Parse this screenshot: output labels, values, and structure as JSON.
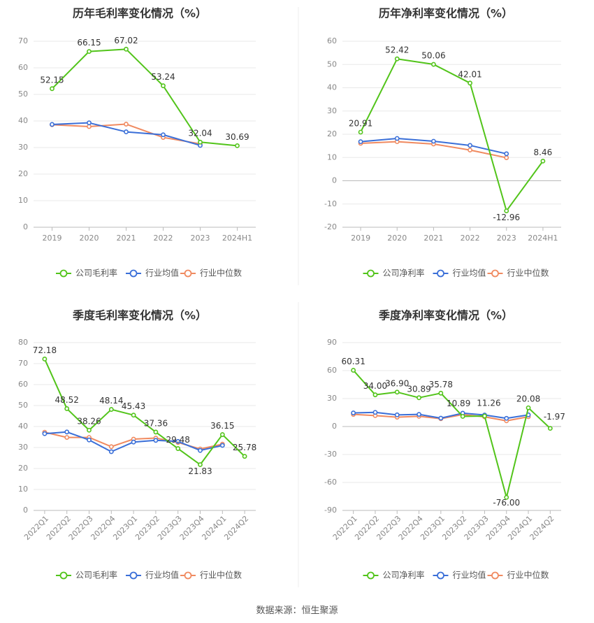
{
  "source_label": "数据来源：恒生聚源",
  "colors": {
    "company": "#52c41a",
    "industry_avg": "#3a6fd8",
    "industry_median": "#f08a60",
    "grid": "#e8e8e8",
    "axis": "#bbbbbb",
    "tick": "#888888",
    "title": "#333333",
    "label": "#333333"
  },
  "chart_data": [
    {
      "type": "line",
      "title": "历年毛利率变化情况（%）",
      "categories": [
        "2019",
        "2020",
        "2021",
        "2022",
        "2023",
        "2024H1"
      ],
      "ylim": [
        0,
        70
      ],
      "yticks": [
        0,
        10,
        20,
        30,
        40,
        50,
        60,
        70
      ],
      "grid": true,
      "legend": "bottom",
      "rotate_xticks": false,
      "series": [
        {
          "name": "公司毛利率",
          "color_key": "company",
          "labels": true,
          "values": [
            52.15,
            66.15,
            67.02,
            53.24,
            32.04,
            30.69
          ],
          "label_text": [
            "52.15",
            "66.15",
            "67.02",
            "53.24",
            "32.04",
            "30.69"
          ]
        },
        {
          "name": "行业均值",
          "color_key": "industry_avg",
          "labels": false,
          "values": [
            38.7,
            39.3,
            35.9,
            34.8,
            30.8,
            null
          ]
        },
        {
          "name": "行业中位数",
          "color_key": "industry_median",
          "labels": false,
          "values": [
            38.6,
            37.9,
            38.8,
            33.8,
            31.4,
            null
          ]
        }
      ]
    },
    {
      "type": "line",
      "title": "历年净利率变化情况（%）",
      "categories": [
        "2019",
        "2020",
        "2021",
        "2022",
        "2023",
        "2024H1"
      ],
      "ylim": [
        -20,
        60
      ],
      "yticks": [
        -20,
        -10,
        0,
        10,
        20,
        30,
        40,
        50,
        60
      ],
      "grid": true,
      "legend": "bottom",
      "rotate_xticks": false,
      "series": [
        {
          "name": "公司净利率",
          "color_key": "company",
          "labels": true,
          "values": [
            20.91,
            52.42,
            50.06,
            42.01,
            -12.96,
            8.46
          ],
          "label_text": [
            "20.91",
            "52.42",
            "50.06",
            "42.01",
            "-12.96",
            "8.46"
          ]
        },
        {
          "name": "行业均值",
          "color_key": "industry_avg",
          "labels": false,
          "values": [
            16.8,
            18.2,
            17.0,
            15.2,
            11.6,
            null
          ]
        },
        {
          "name": "行业中位数",
          "color_key": "industry_median",
          "labels": false,
          "values": [
            16.1,
            16.8,
            15.8,
            13.2,
            9.9,
            null
          ]
        }
      ]
    },
    {
      "type": "line",
      "title": "季度毛利率变化情况（%）",
      "categories": [
        "2022Q1",
        "2022Q2",
        "2022Q3",
        "2022Q4",
        "2023Q1",
        "2023Q2",
        "2023Q3",
        "2023Q4",
        "2024Q1",
        "2024Q2"
      ],
      "ylim": [
        0,
        80
      ],
      "yticks": [
        0,
        10,
        20,
        30,
        40,
        50,
        60,
        70,
        80
      ],
      "grid": true,
      "legend": "bottom",
      "rotate_xticks": true,
      "series": [
        {
          "name": "公司毛利率",
          "color_key": "company",
          "labels": true,
          "values": [
            72.18,
            48.52,
            38.26,
            48.14,
            45.43,
            37.36,
            29.48,
            21.83,
            36.15,
            25.78
          ],
          "label_text": [
            "72.18",
            "48.52",
            "38.26",
            "48.14",
            "45.43",
            "37.36",
            "29.48",
            "21.83",
            "36.15",
            "25.78"
          ]
        },
        {
          "name": "行业均值",
          "color_key": "industry_avg",
          "labels": false,
          "values": [
            36.6,
            37.4,
            33.6,
            28.0,
            32.6,
            33.4,
            32.9,
            28.6,
            31.0,
            null
          ]
        },
        {
          "name": "行业中位数",
          "color_key": "industry_median",
          "labels": false,
          "values": [
            37.3,
            34.8,
            34.8,
            30.4,
            34.0,
            34.5,
            32.4,
            29.3,
            31.6,
            null
          ]
        }
      ]
    },
    {
      "type": "line",
      "title": "季度净利率变化情况（%）",
      "categories": [
        "2022Q1",
        "2022Q2",
        "2022Q3",
        "2022Q4",
        "2023Q1",
        "2023Q2",
        "2023Q3",
        "2023Q4",
        "2024Q1",
        "2024Q2"
      ],
      "ylim": [
        -90,
        90
      ],
      "yticks": [
        -90,
        -60,
        -30,
        0,
        30,
        60,
        90
      ],
      "grid": true,
      "legend": "bottom",
      "rotate_xticks": true,
      "series": [
        {
          "name": "公司净利率",
          "color_key": "company",
          "labels": true,
          "values": [
            60.31,
            34.0,
            36.9,
            30.89,
            35.78,
            10.89,
            11.26,
            -76.0,
            20.08,
            -1.97
          ],
          "label_text": [
            "60.31",
            "34.00",
            "36.90",
            "30.89",
            "35.78",
            "10.89",
            "11.26",
            "-76.00",
            "20.08",
            "-1.97"
          ]
        },
        {
          "name": "行业均值",
          "color_key": "industry_avg",
          "labels": false,
          "values": [
            14.6,
            15.2,
            12.5,
            13.0,
            9.0,
            14.3,
            12.4,
            8.8,
            12.5,
            null
          ]
        },
        {
          "name": "行业中位数",
          "color_key": "industry_median",
          "labels": false,
          "values": [
            13.0,
            11.7,
            10.0,
            11.0,
            8.4,
            12.8,
            10.4,
            6.1,
            10.5,
            null
          ]
        }
      ]
    }
  ]
}
